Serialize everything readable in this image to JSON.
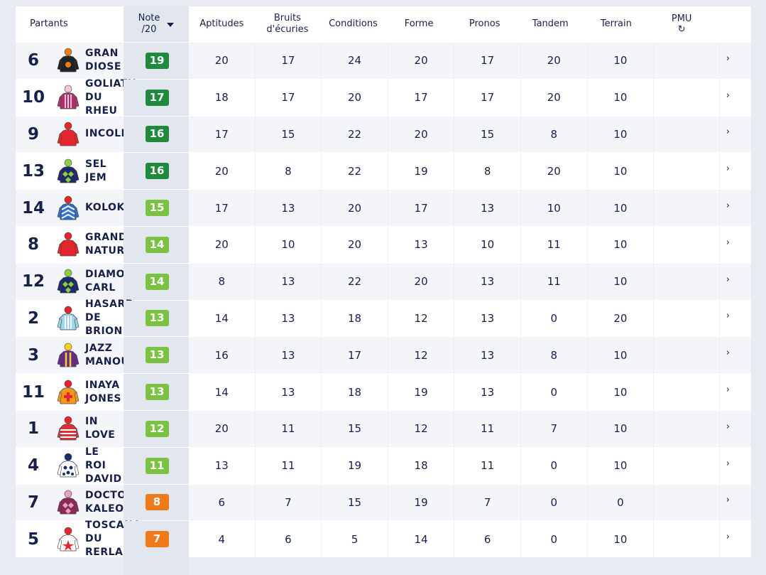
{
  "header": {
    "partants": "Partants",
    "note_line1": "Note",
    "note_line2": "/20",
    "aptitudes": "Aptitudes",
    "bruits_line1": "Bruits",
    "bruits_line2": "d'écuries",
    "conditions": "Conditions",
    "forme": "Forme",
    "pronos": "Pronos",
    "tandem": "Tandem",
    "terrain": "Terrain",
    "pmu": "PMU",
    "pmu_icon": "↻"
  },
  "colors": {
    "dark_green": "#1f8a3d",
    "light_green": "#7cc242",
    "orange": "#f07a1a"
  },
  "rows": [
    {
      "num": "6",
      "name": [
        "GRAN",
        "DIOSE"
      ],
      "note": "19",
      "badge": "dark",
      "silk": "black-orange",
      "aptitudes": "20",
      "bruits": "17",
      "conditions": "24",
      "forme": "20",
      "pronos": "17",
      "tandem": "20",
      "terrain": "10",
      "arrow": "›"
    },
    {
      "num": "10",
      "name": [
        "GOLIATH",
        "DU",
        "RHEU"
      ],
      "note": "17",
      "badge": "dark",
      "silk": "stripes-pink",
      "aptitudes": "18",
      "bruits": "17",
      "conditions": "20",
      "forme": "17",
      "pronos": "17",
      "tandem": "20",
      "terrain": "10",
      "arrow": "›"
    },
    {
      "num": "9",
      "name": [
        "INCOLLABLE"
      ],
      "note": "16",
      "badge": "dark",
      "silk": "red",
      "aptitudes": "17",
      "bruits": "15",
      "conditions": "22",
      "forme": "20",
      "pronos": "15",
      "tandem": "8",
      "terrain": "10",
      "arrow": "›"
    },
    {
      "num": "13",
      "name": [
        "SEL",
        "JEM"
      ],
      "note": "16",
      "badge": "dark",
      "silk": "diamond-navy",
      "aptitudes": "20",
      "bruits": "8",
      "conditions": "22",
      "forme": "19",
      "pronos": "8",
      "tandem": "20",
      "terrain": "10",
      "arrow": "›"
    },
    {
      "num": "14",
      "name": [
        "KOLOKICO"
      ],
      "note": "15",
      "badge": "light",
      "silk": "chevron-blue",
      "aptitudes": "17",
      "bruits": "13",
      "conditions": "20",
      "forme": "17",
      "pronos": "13",
      "tandem": "10",
      "terrain": "10",
      "arrow": "›"
    },
    {
      "num": "8",
      "name": [
        "GRANDEUR",
        "NATURE"
      ],
      "note": "14",
      "badge": "light",
      "silk": "red",
      "aptitudes": "20",
      "bruits": "10",
      "conditions": "20",
      "forme": "13",
      "pronos": "10",
      "tandem": "11",
      "terrain": "10",
      "arrow": "›"
    },
    {
      "num": "12",
      "name": [
        "DIAMOND",
        "CARL"
      ],
      "note": "14",
      "badge": "light",
      "silk": "diamond-navy",
      "aptitudes": "8",
      "bruits": "13",
      "conditions": "22",
      "forme": "20",
      "pronos": "13",
      "tandem": "11",
      "terrain": "10",
      "arrow": "›"
    },
    {
      "num": "2",
      "name": [
        "HASARD",
        "DE",
        "BRION"
      ],
      "note": "13",
      "badge": "light",
      "silk": "stripes-lightblue",
      "aptitudes": "14",
      "bruits": "13",
      "conditions": "18",
      "forme": "12",
      "pronos": "13",
      "tandem": "0",
      "terrain": "20",
      "arrow": "›"
    },
    {
      "num": "3",
      "name": [
        "JAZZ",
        "MANOUCHE"
      ],
      "note": "13",
      "badge": "light",
      "silk": "purple-yellow",
      "aptitudes": "16",
      "bruits": "13",
      "conditions": "17",
      "forme": "12",
      "pronos": "13",
      "tandem": "8",
      "terrain": "10",
      "arrow": "›"
    },
    {
      "num": "11",
      "name": [
        "INAYA",
        "JONES"
      ],
      "note": "13",
      "badge": "light",
      "silk": "orange-cross",
      "aptitudes": "14",
      "bruits": "13",
      "conditions": "18",
      "forme": "19",
      "pronos": "13",
      "tandem": "0",
      "terrain": "10",
      "arrow": "›"
    },
    {
      "num": "1",
      "name": [
        "IN",
        "LOVE"
      ],
      "note": "12",
      "badge": "light",
      "silk": "hoops-red",
      "aptitudes": "20",
      "bruits": "11",
      "conditions": "15",
      "forme": "12",
      "pronos": "11",
      "tandem": "7",
      "terrain": "10",
      "arrow": "›"
    },
    {
      "num": "4",
      "name": [
        "LE",
        "ROI",
        "DAVID"
      ],
      "note": "11",
      "badge": "light",
      "silk": "stars-navy",
      "aptitudes": "13",
      "bruits": "11",
      "conditions": "19",
      "forme": "18",
      "pronos": "11",
      "tandem": "0",
      "terrain": "10",
      "arrow": "›"
    },
    {
      "num": "7",
      "name": [
        "DOCTOR",
        "KALEO"
      ],
      "note": "8",
      "badge": "orange",
      "silk": "maroon-diamond",
      "aptitudes": "6",
      "bruits": "7",
      "conditions": "15",
      "forme": "19",
      "pronos": "7",
      "tandem": "0",
      "terrain": "0",
      "arrow": "›"
    },
    {
      "num": "5",
      "name": [
        "TOSCANA",
        "DU",
        "RERLAIS"
      ],
      "note": "7",
      "badge": "orange",
      "silk": "white-redstar",
      "aptitudes": "4",
      "bruits": "6",
      "conditions": "5",
      "forme": "14",
      "pronos": "6",
      "tandem": "0",
      "terrain": "10",
      "arrow": "›"
    }
  ]
}
